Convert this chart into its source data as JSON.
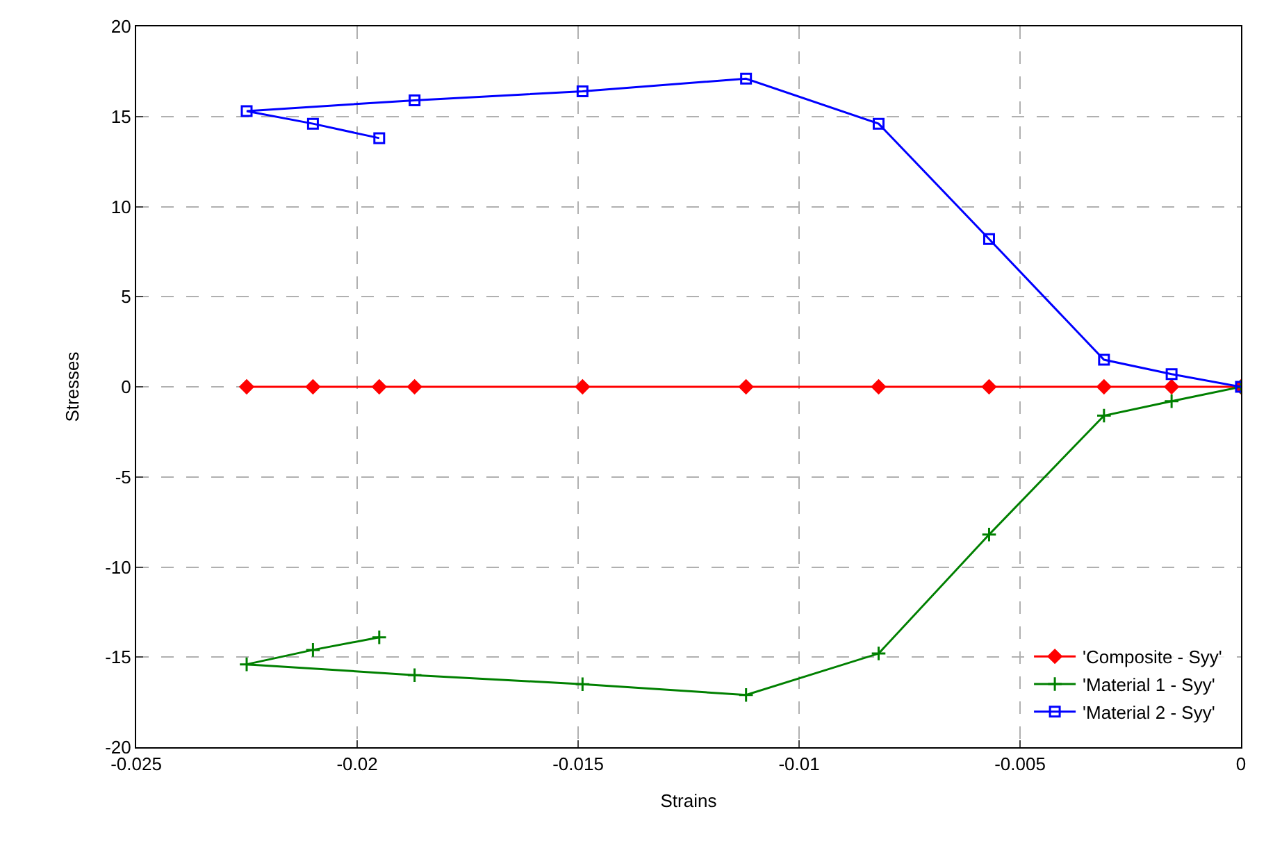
{
  "chart_data": {
    "type": "line",
    "xlabel": "Strains",
    "ylabel": "Stresses",
    "x": [
      0,
      -0.00157,
      -0.0031,
      -0.0057,
      -0.0082,
      -0.0112,
      -0.0149,
      -0.0187,
      -0.0225,
      -0.021,
      -0.0195
    ],
    "series": [
      {
        "name": "'Composite - Syy'",
        "color": "#ff0000",
        "marker": "diamond",
        "values": [
          0,
          0,
          0,
          0,
          0,
          0,
          0,
          0,
          0,
          0,
          0
        ]
      },
      {
        "name": "'Material 1 - Syy'",
        "color": "#008000",
        "marker": "cross",
        "values": [
          0,
          -0.8,
          -1.6,
          -8.2,
          -14.8,
          -17.1,
          -16.5,
          -16.0,
          -15.4,
          -14.6,
          -13.9
        ]
      },
      {
        "name": "'Material 2 - Syy'",
        "color": "#0000ff",
        "marker": "square",
        "values": [
          0,
          0.7,
          1.5,
          8.2,
          14.6,
          17.1,
          16.4,
          15.9,
          15.3,
          14.6,
          13.8
        ]
      }
    ],
    "xlim": [
      -0.025,
      0
    ],
    "xticks": [
      -0.025,
      -0.02,
      -0.015,
      -0.01,
      -0.005,
      0
    ],
    "ylim": [
      -20,
      20
    ],
    "yticks": [
      -20,
      -15,
      -10,
      -5,
      0,
      5,
      10,
      15,
      20
    ],
    "grid": true,
    "legend": "bottom right",
    "line_style": "solid"
  }
}
